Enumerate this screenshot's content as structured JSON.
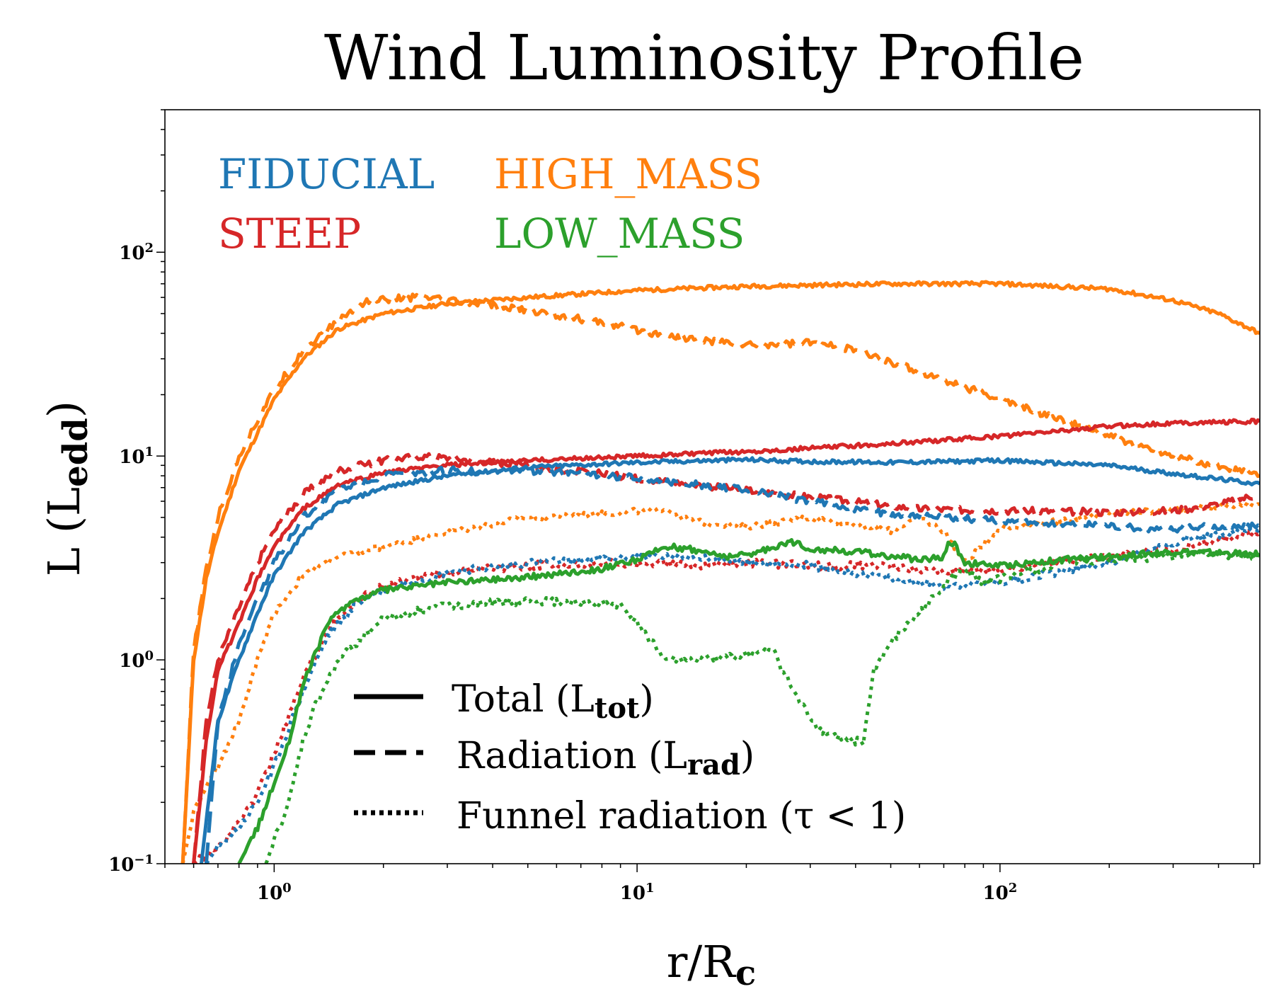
{
  "chart_data": {
    "type": "line",
    "title": "Wind Luminosity Profile",
    "xlabel": "r/R",
    "xlabel_sub": "c",
    "ylabel": "L (L",
    "ylabel_sub": "edd",
    "ylabel_close": ")",
    "xscale": "log",
    "yscale": "log",
    "xlim": [
      0.5,
      520
    ],
    "ylim": [
      0.1,
      500
    ],
    "x_ticks": [
      {
        "value": 1,
        "base": "10",
        "exp": "0"
      },
      {
        "value": 10,
        "base": "10",
        "exp": "1"
      },
      {
        "value": 100,
        "base": "10",
        "exp": "2"
      }
    ],
    "y_ticks": [
      {
        "value": 0.1,
        "base": "10",
        "exp": "−1"
      },
      {
        "value": 1,
        "base": "10",
        "exp": "0"
      },
      {
        "value": 10,
        "base": "10",
        "exp": "1"
      },
      {
        "value": 100,
        "base": "10",
        "exp": "2"
      }
    ],
    "colors": {
      "FIDUCIAL": "#1f77b4",
      "STEEP": "#d62728",
      "HIGH_MASS": "#ff7f0e",
      "LOW_MASS": "#2ca02c"
    },
    "groups": [
      {
        "name": "FIDUCIAL",
        "position": "top-left-1"
      },
      {
        "name": "HIGH_MASS",
        "position": "top-left-2"
      },
      {
        "name": "STEEP",
        "position": "top-left-3"
      },
      {
        "name": "LOW_MASS",
        "position": "top-left-4"
      }
    ],
    "legend": [
      {
        "style": "solid",
        "label": "Total (L",
        "sub": "tot",
        "close": ")"
      },
      {
        "style": "dashed",
        "label": "Radiation  (L",
        "sub": "rad",
        "close": ")"
      },
      {
        "style": "dotted",
        "label": "Funnel radiation  (τ < 1)",
        "sub": "",
        "close": ""
      }
    ],
    "series": [
      {
        "name": "HIGH_MASS",
        "kind": "total",
        "style": "solid",
        "noise": 0.02,
        "x": [
          0.56,
          0.6,
          0.65,
          0.7,
          0.8,
          0.9,
          1.0,
          1.2,
          1.5,
          2,
          3,
          5,
          10,
          20,
          50,
          100,
          200,
          300,
          400,
          520
        ],
        "y": [
          0.1,
          1.0,
          2.5,
          4.2,
          8.5,
          13,
          19,
          30,
          42,
          50,
          56,
          60,
          65,
          68,
          70,
          70,
          66,
          58,
          50,
          40
        ]
      },
      {
        "name": "HIGH_MASS",
        "kind": "radiation",
        "style": "dashed",
        "noise": 0.035,
        "x": [
          0.56,
          0.6,
          0.65,
          0.7,
          0.8,
          0.9,
          1.0,
          1.2,
          1.5,
          1.8,
          2.5,
          3,
          5,
          8,
          12,
          20,
          30,
          40,
          60,
          100,
          200,
          300,
          520
        ],
        "y": [
          0.1,
          1.1,
          2.8,
          5.0,
          10,
          15,
          21,
          33,
          46,
          58,
          60,
          58,
          52,
          45,
          39,
          35,
          36,
          33,
          26,
          19,
          12.5,
          10,
          8.0
        ]
      },
      {
        "name": "HIGH_MASS",
        "kind": "funnel",
        "style": "dotted",
        "noise": 0.03,
        "x": [
          0.56,
          0.6,
          0.7,
          0.8,
          0.9,
          1.0,
          1.2,
          1.5,
          2,
          3,
          5,
          8,
          12,
          14,
          20,
          30,
          40,
          50,
          60,
          70,
          80,
          100,
          200,
          300,
          520
        ],
        "y": [
          0.1,
          0.18,
          0.3,
          0.5,
          1.0,
          1.7,
          2.6,
          3.2,
          3.6,
          4.2,
          5.0,
          5.2,
          5.5,
          4.8,
          4.5,
          5.0,
          4.6,
          4.3,
          5.0,
          4.3,
          3.0,
          4.4,
          5.2,
          5.5,
          5.8
        ]
      },
      {
        "name": "STEEP",
        "kind": "total",
        "style": "solid",
        "noise": 0.02,
        "x": [
          0.6,
          0.65,
          0.7,
          0.8,
          0.9,
          1.0,
          1.2,
          1.5,
          2,
          3,
          5,
          10,
          20,
          50,
          100,
          200,
          300,
          520
        ],
        "y": [
          0.1,
          0.4,
          0.9,
          1.5,
          2.5,
          3.6,
          5.5,
          7.2,
          8.3,
          9.0,
          9.5,
          10,
          10.5,
          11.5,
          12.5,
          14,
          14.5,
          14.8
        ]
      },
      {
        "name": "STEEP",
        "kind": "radiation",
        "style": "dashed",
        "noise": 0.035,
        "x": [
          0.6,
          0.65,
          0.7,
          0.8,
          0.9,
          1.0,
          1.2,
          1.5,
          2,
          2.5,
          3,
          5,
          10,
          20,
          30,
          60,
          100,
          200,
          300,
          400,
          520
        ],
        "y": [
          0.1,
          0.5,
          1.0,
          1.8,
          3.0,
          4.3,
          6.5,
          8.5,
          9.5,
          10,
          9.8,
          9.0,
          7.8,
          6.8,
          6.3,
          5.5,
          5.4,
          5.3,
          5.4,
          5.8,
          6.5
        ]
      },
      {
        "name": "STEEP",
        "kind": "funnel",
        "style": "dotted",
        "noise": 0.04,
        "x": [
          0.6,
          0.7,
          0.8,
          0.9,
          1.0,
          1.2,
          1.4,
          1.7,
          2,
          3,
          5,
          10,
          15,
          20,
          30,
          50,
          70,
          100,
          200,
          300,
          520
        ],
        "y": [
          0.1,
          0.12,
          0.16,
          0.22,
          0.35,
          0.8,
          1.4,
          2.0,
          2.3,
          2.7,
          2.9,
          3.0,
          2.9,
          3.0,
          2.9,
          2.9,
          2.7,
          2.8,
          3.2,
          3.5,
          4.2
        ]
      },
      {
        "name": "FIDUCIAL",
        "kind": "total",
        "style": "solid",
        "noise": 0.02,
        "x": [
          0.63,
          0.7,
          0.8,
          0.9,
          1.0,
          1.2,
          1.5,
          2,
          3,
          5,
          10,
          20,
          30,
          50,
          100,
          200,
          300,
          520
        ],
        "y": [
          0.1,
          0.5,
          1.0,
          1.7,
          2.6,
          4.2,
          5.8,
          7.0,
          8.0,
          8.8,
          9.3,
          9.6,
          9.4,
          9.3,
          9.5,
          9.0,
          8.2,
          7.3
        ]
      },
      {
        "name": "FIDUCIAL",
        "kind": "radiation",
        "style": "dashed",
        "noise": 0.035,
        "x": [
          0.65,
          0.7,
          0.8,
          0.9,
          1.0,
          1.2,
          1.5,
          2,
          3,
          5,
          10,
          20,
          30,
          50,
          100,
          200,
          250,
          300,
          400,
          520
        ],
        "y": [
          0.1,
          0.5,
          1.2,
          2.0,
          3.0,
          5.0,
          6.8,
          8.0,
          8.5,
          8.5,
          7.8,
          6.8,
          6.0,
          5.2,
          4.8,
          4.6,
          4.4,
          4.4,
          4.5,
          4.5
        ]
      },
      {
        "name": "FIDUCIAL",
        "kind": "funnel",
        "style": "dotted",
        "noise": 0.04,
        "x": [
          0.65,
          0.7,
          0.8,
          0.9,
          1.0,
          1.2,
          1.4,
          1.7,
          2,
          3,
          5,
          8,
          10,
          15,
          20,
          30,
          50,
          70,
          100,
          200,
          300,
          520
        ],
        "y": [
          0.1,
          0.12,
          0.15,
          0.2,
          0.3,
          0.7,
          1.3,
          1.9,
          2.2,
          2.7,
          3.0,
          3.1,
          3.2,
          3.2,
          3.0,
          2.9,
          2.5,
          2.3,
          2.4,
          3.0,
          3.8,
          4.4
        ]
      },
      {
        "name": "LOW_MASS",
        "kind": "total",
        "style": "solid",
        "noise": 0.03,
        "x": [
          0.8,
          0.9,
          1.0,
          1.1,
          1.2,
          1.4,
          1.6,
          2,
          3,
          5,
          8,
          10,
          12,
          14,
          18,
          22,
          26,
          28,
          30,
          40,
          60,
          70,
          72,
          75,
          80,
          100,
          150,
          200,
          300,
          520
        ],
        "y": [
          0.1,
          0.15,
          0.25,
          0.4,
          0.75,
          1.5,
          1.9,
          2.2,
          2.4,
          2.55,
          2.8,
          3.1,
          3.6,
          3.5,
          3.2,
          3.4,
          3.8,
          3.7,
          3.5,
          3.4,
          3.1,
          3.2,
          3.7,
          3.7,
          3.0,
          2.9,
          3.1,
          3.2,
          3.4,
          3.3
        ]
      },
      {
        "name": "LOW_MASS",
        "kind": "funnel",
        "style": "dotted",
        "noise": 0.04,
        "x": [
          0.95,
          1.0,
          1.1,
          1.2,
          1.3,
          1.5,
          2,
          3,
          5,
          7,
          9,
          10,
          12,
          15,
          20,
          24,
          25,
          28,
          32,
          38,
          42,
          45,
          50,
          60,
          70,
          80,
          90,
          100,
          120,
          150,
          200,
          300,
          400,
          520
        ],
        "y": [
          0.1,
          0.13,
          0.2,
          0.4,
          0.6,
          1.0,
          1.6,
          1.85,
          1.95,
          1.9,
          1.85,
          1.5,
          1.0,
          1.0,
          1.05,
          1.1,
          0.9,
          0.62,
          0.45,
          0.4,
          0.4,
          0.9,
          1.2,
          1.7,
          2.3,
          2.8,
          2.4,
          2.5,
          2.7,
          3.0,
          3.1,
          3.2,
          3.3,
          3.2
        ]
      }
    ]
  }
}
